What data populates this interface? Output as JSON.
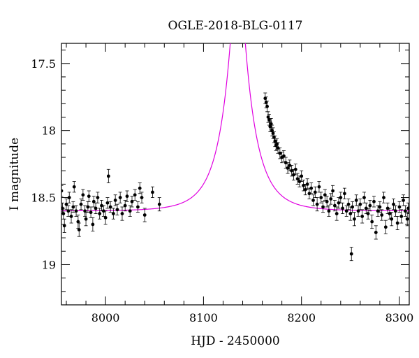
{
  "chart_data": {
    "type": "scatter",
    "title": "OGLE-2018-BLG-0117",
    "xlabel": "HJD - 2450000",
    "ylabel": "I magnitude",
    "xlim": [
      7955,
      8310
    ],
    "ylim": [
      19.3,
      17.35
    ],
    "y_inverted": true,
    "x_major_ticks": [
      8000,
      8100,
      8200,
      8300
    ],
    "x_tick_labels": [
      "8000",
      "8100",
      "8200",
      "8300"
    ],
    "y_major_ticks": [
      17.5,
      18,
      18.5,
      19
    ],
    "y_tick_labels": [
      "17.5",
      "18",
      "18.5",
      "19"
    ],
    "grid": false,
    "colors": {
      "data": "#000000",
      "model": "#e000e0"
    },
    "model": {
      "type": "microlensing-fit",
      "baseline_mag": 18.6,
      "t0": 8135,
      "tE": 28,
      "u0": 0.18,
      "samples": [
        [
          7955,
          18.59
        ],
        [
          7975,
          18.58
        ],
        [
          8000,
          18.57
        ],
        [
          8020,
          18.55
        ],
        [
          8040,
          18.51
        ],
        [
          8060,
          18.43
        ],
        [
          8075,
          18.31
        ],
        [
          8088,
          18.1
        ],
        [
          8098,
          17.85
        ],
        [
          8108,
          17.55
        ],
        [
          8115,
          17.32
        ],
        [
          8160,
          17.6
        ],
        [
          8170,
          17.9
        ],
        [
          8180,
          18.12
        ],
        [
          8190,
          18.27
        ],
        [
          8200,
          18.37
        ],
        [
          8220,
          18.48
        ],
        [
          8240,
          18.54
        ],
        [
          8260,
          18.57
        ],
        [
          8280,
          18.59
        ],
        [
          8310,
          18.6
        ]
      ]
    },
    "series": [
      {
        "points": [
          [
            7955,
            18.45,
            0.04
          ],
          [
            7956,
            18.58,
            0.04
          ],
          [
            7957,
            18.62,
            0.04
          ],
          [
            7958,
            18.71,
            0.05
          ],
          [
            7960,
            18.55,
            0.04
          ],
          [
            7962,
            18.6,
            0.04
          ],
          [
            7963,
            18.5,
            0.04
          ],
          [
            7965,
            18.64,
            0.05
          ],
          [
            7967,
            18.57,
            0.04
          ],
          [
            7968,
            18.42,
            0.04
          ],
          [
            7970,
            18.6,
            0.04
          ],
          [
            7972,
            18.68,
            0.05
          ],
          [
            7973,
            18.74,
            0.05
          ],
          [
            7975,
            18.55,
            0.04
          ],
          [
            7977,
            18.48,
            0.04
          ],
          [
            7979,
            18.6,
            0.04
          ],
          [
            7980,
            18.66,
            0.05
          ],
          [
            7982,
            18.57,
            0.04
          ],
          [
            7983,
            18.49,
            0.04
          ],
          [
            7985,
            18.61,
            0.04
          ],
          [
            7987,
            18.7,
            0.05
          ],
          [
            7988,
            18.53,
            0.04
          ],
          [
            7990,
            18.58,
            0.04
          ],
          [
            7992,
            18.5,
            0.04
          ],
          [
            7994,
            18.62,
            0.04
          ],
          [
            7996,
            18.56,
            0.04
          ],
          [
            7998,
            18.6,
            0.04
          ],
          [
            8000,
            18.65,
            0.05
          ],
          [
            8002,
            18.54,
            0.04
          ],
          [
            8003,
            18.34,
            0.05
          ],
          [
            8005,
            18.57,
            0.04
          ],
          [
            8008,
            18.62,
            0.04
          ],
          [
            8010,
            18.52,
            0.04
          ],
          [
            8012,
            18.59,
            0.04
          ],
          [
            8015,
            18.5,
            0.04
          ],
          [
            8017,
            18.62,
            0.05
          ],
          [
            8020,
            18.56,
            0.04
          ],
          [
            8022,
            18.49,
            0.04
          ],
          [
            8025,
            18.6,
            0.04
          ],
          [
            8027,
            18.53,
            0.04
          ],
          [
            8030,
            18.48,
            0.04
          ],
          [
            8033,
            18.57,
            0.04
          ],
          [
            8035,
            18.43,
            0.04
          ],
          [
            8037,
            18.5,
            0.04
          ],
          [
            8040,
            18.63,
            0.05
          ],
          [
            8048,
            18.46,
            0.04
          ],
          [
            8055,
            18.55,
            0.05
          ],
          [
            8163,
            17.76,
            0.04
          ],
          [
            8164,
            17.79,
            0.04
          ],
          [
            8165,
            17.82,
            0.04
          ],
          [
            8166,
            17.9,
            0.04
          ],
          [
            8167,
            17.92,
            0.04
          ],
          [
            8168,
            17.97,
            0.04
          ],
          [
            8169,
            17.95,
            0.04
          ],
          [
            8170,
            18.0,
            0.04
          ],
          [
            8171,
            18.02,
            0.04
          ],
          [
            8172,
            18.05,
            0.04
          ],
          [
            8173,
            18.08,
            0.04
          ],
          [
            8174,
            18.11,
            0.04
          ],
          [
            8175,
            18.1,
            0.04
          ],
          [
            8176,
            18.13,
            0.04
          ],
          [
            8178,
            18.17,
            0.04
          ],
          [
            8180,
            18.2,
            0.04
          ],
          [
            8182,
            18.19,
            0.04
          ],
          [
            8184,
            18.24,
            0.04
          ],
          [
            8186,
            18.28,
            0.04
          ],
          [
            8188,
            18.26,
            0.04
          ],
          [
            8190,
            18.3,
            0.04
          ],
          [
            8192,
            18.33,
            0.04
          ],
          [
            8194,
            18.29,
            0.04
          ],
          [
            8196,
            18.36,
            0.04
          ],
          [
            8198,
            18.38,
            0.04
          ],
          [
            8200,
            18.34,
            0.04
          ],
          [
            8202,
            18.41,
            0.04
          ],
          [
            8204,
            18.44,
            0.04
          ],
          [
            8206,
            18.4,
            0.04
          ],
          [
            8208,
            18.47,
            0.04
          ],
          [
            8210,
            18.43,
            0.04
          ],
          [
            8212,
            18.52,
            0.04
          ],
          [
            8214,
            18.46,
            0.04
          ],
          [
            8216,
            18.55,
            0.05
          ],
          [
            8218,
            18.42,
            0.04
          ],
          [
            8220,
            18.5,
            0.04
          ],
          [
            8222,
            18.57,
            0.04
          ],
          [
            8224,
            18.48,
            0.04
          ],
          [
            8226,
            18.53,
            0.04
          ],
          [
            8228,
            18.6,
            0.04
          ],
          [
            8230,
            18.51,
            0.04
          ],
          [
            8232,
            18.45,
            0.04
          ],
          [
            8234,
            18.56,
            0.04
          ],
          [
            8236,
            18.62,
            0.05
          ],
          [
            8238,
            18.54,
            0.04
          ],
          [
            8240,
            18.5,
            0.04
          ],
          [
            8242,
            18.58,
            0.04
          ],
          [
            8244,
            18.47,
            0.04
          ],
          [
            8246,
            18.6,
            0.04
          ],
          [
            8248,
            18.55,
            0.04
          ],
          [
            8250,
            18.62,
            0.05
          ],
          [
            8251,
            18.92,
            0.05
          ],
          [
            8252,
            18.57,
            0.04
          ],
          [
            8254,
            18.66,
            0.05
          ],
          [
            8256,
            18.52,
            0.04
          ],
          [
            8258,
            18.6,
            0.04
          ],
          [
            8260,
            18.55,
            0.04
          ],
          [
            8262,
            18.64,
            0.05
          ],
          [
            8264,
            18.5,
            0.04
          ],
          [
            8266,
            18.58,
            0.04
          ],
          [
            8268,
            18.62,
            0.04
          ],
          [
            8270,
            18.56,
            0.04
          ],
          [
            8272,
            18.68,
            0.05
          ],
          [
            8274,
            18.53,
            0.04
          ],
          [
            8276,
            18.76,
            0.05
          ],
          [
            8278,
            18.6,
            0.04
          ],
          [
            8280,
            18.57,
            0.04
          ],
          [
            8282,
            18.63,
            0.04
          ],
          [
            8284,
            18.5,
            0.04
          ],
          [
            8286,
            18.72,
            0.05
          ],
          [
            8288,
            18.58,
            0.04
          ],
          [
            8290,
            18.62,
            0.04
          ],
          [
            8292,
            18.66,
            0.05
          ],
          [
            8294,
            18.55,
            0.04
          ],
          [
            8296,
            18.6,
            0.04
          ],
          [
            8298,
            18.69,
            0.05
          ],
          [
            8300,
            18.57,
            0.04
          ],
          [
            8302,
            18.64,
            0.05
          ],
          [
            8304,
            18.52,
            0.04
          ],
          [
            8306,
            18.6,
            0.04
          ],
          [
            8308,
            18.66,
            0.05
          ],
          [
            8309,
            18.58,
            0.04
          ]
        ]
      }
    ]
  }
}
